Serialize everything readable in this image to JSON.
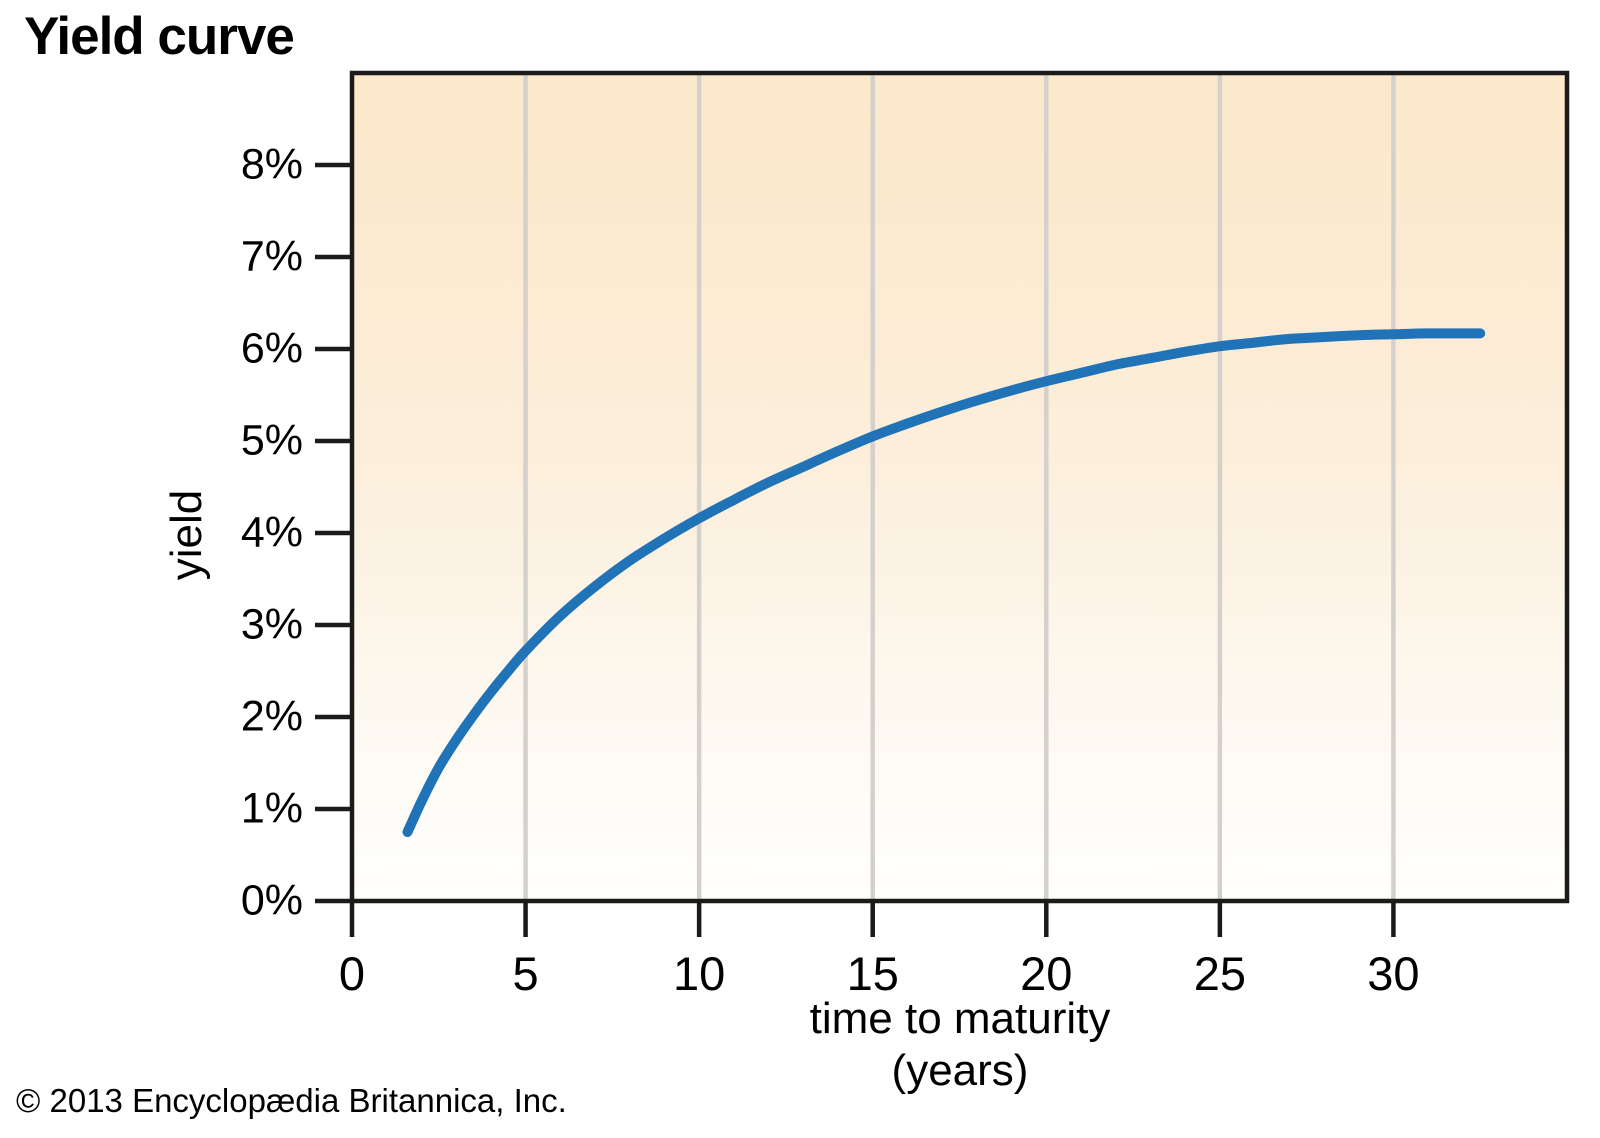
{
  "title": "Yield curve",
  "copyright": "© 2013 Encyclopædia Britannica, Inc.",
  "colors": {
    "curve": "#2173b8",
    "frame": "#1b1b19",
    "gridline": "#d4d1cd",
    "bg_gradient_top": "#fce8ca",
    "bg_gradient_mid": "#fceeda",
    "bg_gradient_low": "#fdf8ef",
    "bg_gradient_bottom": "#fffffe",
    "text": "#000000"
  },
  "chart_data": {
    "type": "line",
    "title": "Yield curve",
    "xlabel": "time to maturity",
    "xlabel_unit": "(years)",
    "ylabel": "yield",
    "xlim": [
      0,
      35
    ],
    "ylim": [
      0,
      9
    ],
    "x_ticks": [
      0,
      5,
      10,
      15,
      20,
      25,
      30
    ],
    "y_tick_values": [
      0,
      1,
      2,
      3,
      4,
      5,
      6,
      7,
      8
    ],
    "y_tick_labels": [
      "0%",
      "1%",
      "2%",
      "3%",
      "4%",
      "5%",
      "6%",
      "7%",
      "8%"
    ],
    "grid": {
      "vertical_at": [
        5,
        10,
        15,
        20,
        25,
        30
      ],
      "horizontal": false
    },
    "legend": "none",
    "series": [
      {
        "name": "yield curve",
        "points": [
          [
            1.6,
            0.75
          ],
          [
            2,
            1.08
          ],
          [
            2.5,
            1.45
          ],
          [
            3,
            1.75
          ],
          [
            3.5,
            2.02
          ],
          [
            4,
            2.27
          ],
          [
            4.5,
            2.5
          ],
          [
            5,
            2.72
          ],
          [
            6,
            3.1
          ],
          [
            7,
            3.42
          ],
          [
            8,
            3.7
          ],
          [
            9,
            3.94
          ],
          [
            10,
            4.16
          ],
          [
            11,
            4.36
          ],
          [
            12,
            4.55
          ],
          [
            13,
            4.72
          ],
          [
            14,
            4.89
          ],
          [
            15,
            5.05
          ],
          [
            16,
            5.19
          ],
          [
            17,
            5.32
          ],
          [
            18,
            5.44
          ],
          [
            19,
            5.55
          ],
          [
            20,
            5.65
          ],
          [
            21,
            5.74
          ],
          [
            22,
            5.83
          ],
          [
            23,
            5.9
          ],
          [
            24,
            5.97
          ],
          [
            25,
            6.03
          ],
          [
            26,
            6.07
          ],
          [
            27,
            6.11
          ],
          [
            28,
            6.13
          ],
          [
            29,
            6.15
          ],
          [
            30,
            6.16
          ],
          [
            31,
            6.17
          ],
          [
            32.5,
            6.17
          ]
        ]
      }
    ]
  }
}
